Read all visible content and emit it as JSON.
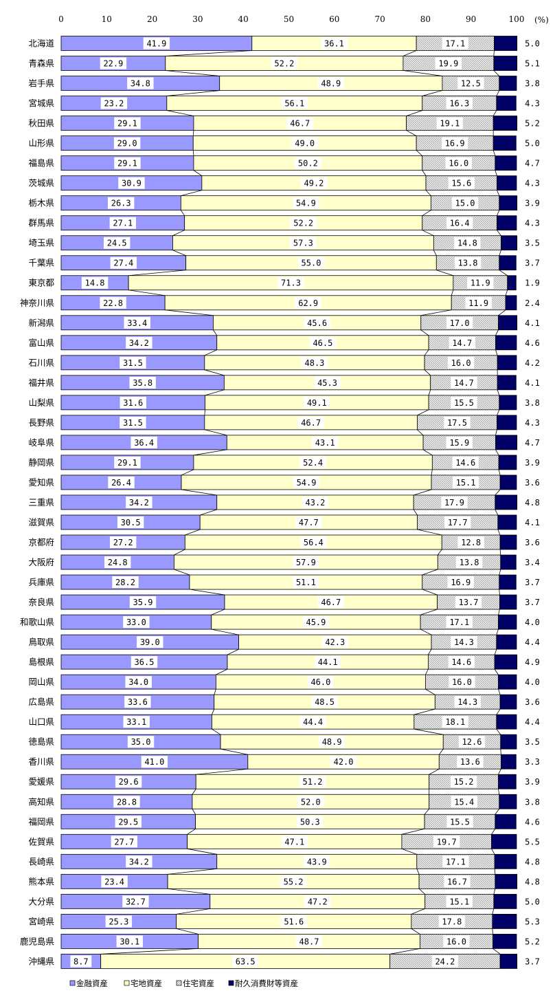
{
  "chart_data": {
    "type": "bar",
    "orientation": "horizontal",
    "stacked": true,
    "percent_stacked": true,
    "xlim": [
      0,
      100
    ],
    "x_ticks": [
      "0",
      "10",
      "20",
      "30",
      "40",
      "50",
      "60",
      "70",
      "80",
      "90",
      "100"
    ],
    "unit_label": "(%)",
    "grid": false,
    "legend_position": "bottom-left",
    "categories": [
      "北海道",
      "青森県",
      "岩手県",
      "宮城県",
      "秋田県",
      "山形県",
      "福島県",
      "茨城県",
      "栃木県",
      "群馬県",
      "埼玉県",
      "千葉県",
      "東京都",
      "神奈川県",
      "新潟県",
      "富山県",
      "石川県",
      "福井県",
      "山梨県",
      "長野県",
      "岐阜県",
      "静岡県",
      "愛知県",
      "三重県",
      "滋賀県",
      "京都府",
      "大阪府",
      "兵庫県",
      "奈良県",
      "和歌山県",
      "鳥取県",
      "島根県",
      "岡山県",
      "広島県",
      "山口県",
      "徳島県",
      "香川県",
      "愛媛県",
      "高知県",
      "福岡県",
      "佐賀県",
      "長崎県",
      "熊本県",
      "大分県",
      "宮崎県",
      "鹿児島県",
      "沖縄県"
    ],
    "series": [
      {
        "name": "金融資産",
        "color": "#9999ff",
        "values": [
          41.9,
          22.9,
          34.8,
          23.2,
          29.1,
          29.0,
          29.1,
          30.9,
          26.3,
          27.1,
          24.5,
          27.4,
          14.8,
          22.8,
          33.4,
          34.2,
          31.5,
          35.8,
          31.6,
          31.5,
          36.4,
          29.1,
          26.4,
          34.2,
          30.5,
          27.2,
          24.8,
          28.2,
          35.9,
          33.0,
          39.0,
          36.5,
          34.0,
          33.6,
          33.1,
          35.0,
          41.0,
          29.6,
          28.8,
          29.5,
          27.7,
          34.2,
          23.4,
          32.7,
          25.3,
          30.1,
          8.7
        ],
        "labels": [
          "41.9",
          "22.9",
          "34.8",
          "23.2",
          "29.1",
          "29.0",
          "29.1",
          "30.9",
          "26.3",
          "27.1",
          "24.5",
          "27.4",
          "14.8",
          "22.8",
          "33.4",
          "34.2",
          "31.5",
          "35.8",
          "31.6",
          "31.5",
          "36.4",
          "29.1",
          "26.4",
          "34.2",
          "30.5",
          "27.2",
          "24.8",
          "28.2",
          "35.9",
          "33.0",
          "39.0",
          "36.5",
          "34.0",
          "33.6",
          "33.1",
          "35.0",
          "41.0",
          "29.6",
          "28.8",
          "29.5",
          "27.7",
          "34.2",
          "23.4",
          "32.7",
          "25.3",
          "30.1",
          "8.7"
        ]
      },
      {
        "name": "宅地資産",
        "color": "#ffffcc",
        "values": [
          36.1,
          52.2,
          48.9,
          56.1,
          46.7,
          49.0,
          50.2,
          49.2,
          54.9,
          52.2,
          57.3,
          55.0,
          71.3,
          62.9,
          45.6,
          46.5,
          48.3,
          45.3,
          49.1,
          46.7,
          43.1,
          52.4,
          54.9,
          43.2,
          47.7,
          56.4,
          57.9,
          51.1,
          46.7,
          45.9,
          42.3,
          44.1,
          46.0,
          48.5,
          44.4,
          48.9,
          42.0,
          51.2,
          52.0,
          50.3,
          47.1,
          43.9,
          55.2,
          47.2,
          51.6,
          48.7,
          63.5
        ],
        "labels": [
          "36.1",
          "52.2",
          "48.9",
          "56.1",
          "46.7",
          "49.0",
          "50.2",
          "49.2",
          "54.9",
          "52.2",
          "57.3",
          "55.0",
          "71.3",
          "62.9",
          "45.6",
          "46.5",
          "48.3",
          "45.3",
          "49.1",
          "46.7",
          "43.1",
          "52.4",
          "54.9",
          "43.2",
          "47.7",
          "56.4",
          "57.9",
          "51.1",
          "46.7",
          "45.9",
          "42.3",
          "44.1",
          "46.0",
          "48.5",
          "44.4",
          "48.9",
          "42.0",
          "51.2",
          "52.0",
          "50.3",
          "47.1",
          "43.9",
          "55.2",
          "47.2",
          "51.6",
          "48.7",
          "63.5"
        ]
      },
      {
        "name": "住宅資産",
        "color": "#d9d9d9",
        "values": [
          17.1,
          19.9,
          12.5,
          16.3,
          19.1,
          16.9,
          16.0,
          15.6,
          15.0,
          16.4,
          14.8,
          13.8,
          11.9,
          11.9,
          17.0,
          14.7,
          16.0,
          14.7,
          15.5,
          17.5,
          15.9,
          14.6,
          15.1,
          17.9,
          17.7,
          12.8,
          13.8,
          16.9,
          13.7,
          17.1,
          14.3,
          14.6,
          16.0,
          14.3,
          18.1,
          12.6,
          13.6,
          15.2,
          15.4,
          15.5,
          19.7,
          17.1,
          16.7,
          15.1,
          17.8,
          16.0,
          24.2
        ],
        "labels": [
          "17.1",
          "19.9",
          "12.5",
          "16.3",
          "19.1",
          "16.9",
          "16.0",
          "15.6",
          "15.0",
          "16.4",
          "14.8",
          "13.8",
          "11.9",
          "11.9",
          "17.0",
          "14.7",
          "16.0",
          "14.7",
          "15.5",
          "17.5",
          "15.9",
          "14.6",
          "15.1",
          "17.9",
          "17.7",
          "12.8",
          "13.8",
          "16.9",
          "13.7",
          "17.1",
          "14.3",
          "14.6",
          "16.0",
          "14.3",
          "18.1",
          "12.6",
          "13.6",
          "15.2",
          "15.4",
          "15.5",
          "19.7",
          "17.1",
          "16.7",
          "15.1",
          "17.8",
          "16.0",
          "24.2"
        ]
      },
      {
        "name": "耐久消費財等資産",
        "color": "#000066",
        "values": [
          5.0,
          5.1,
          3.8,
          4.3,
          5.2,
          5.0,
          4.7,
          4.3,
          3.9,
          4.3,
          3.5,
          3.7,
          1.9,
          2.4,
          4.1,
          4.6,
          4.2,
          4.1,
          3.8,
          4.3,
          4.7,
          3.9,
          3.6,
          4.8,
          4.1,
          3.6,
          3.4,
          3.7,
          3.7,
          4.0,
          4.4,
          4.9,
          4.0,
          3.6,
          4.4,
          3.5,
          3.3,
          3.9,
          3.8,
          4.6,
          5.5,
          4.8,
          4.8,
          5.0,
          5.3,
          5.2,
          3.7
        ],
        "labels": [
          "5.0",
          "5.1",
          "3.8",
          "4.3",
          "5.2",
          "5.0",
          "4.7",
          "4.3",
          "3.9",
          "4.3",
          "3.5",
          "3.7",
          "1.9",
          "2.4",
          "4.1",
          "4.6",
          "4.2",
          "4.1",
          "3.8",
          "4.3",
          "4.7",
          "3.9",
          "3.6",
          "4.8",
          "4.1",
          "3.6",
          "3.4",
          "3.7",
          "3.7",
          "4.0",
          "4.4",
          "4.9",
          "4.0",
          "3.6",
          "4.4",
          "3.5",
          "3.3",
          "3.9",
          "3.8",
          "4.6",
          "5.5",
          "4.8",
          "4.8",
          "5.0",
          "5.3",
          "5.2",
          "3.7"
        ]
      }
    ]
  }
}
